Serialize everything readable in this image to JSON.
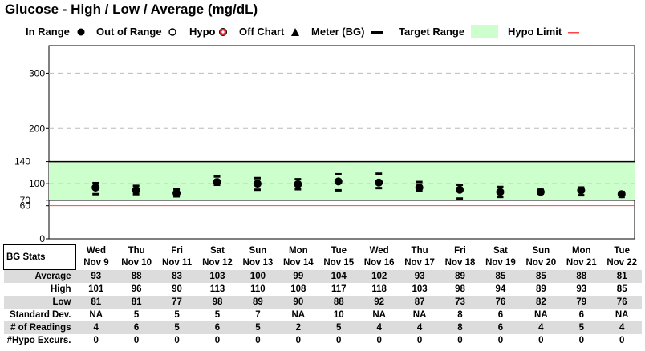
{
  "title": "Glucose - High / Low / Average  (mg/dL)",
  "legend": {
    "in_range": "In Range",
    "out_of_range": "Out of Range",
    "hypo": "Hypo",
    "off_chart": "Off Chart",
    "meter": "Meter (BG)",
    "target_range": "Target Range",
    "hypo_limit": "Hypo Limit"
  },
  "colors": {
    "target_fill": "#ccffcc",
    "hypo_limit": "#ff4444",
    "grid": "#bbbbbb",
    "shade_row": "#dcdcdc"
  },
  "chart_data": {
    "type": "scatter",
    "y_ticks": [
      "300",
      "200",
      "140",
      "100",
      "70",
      "60",
      "0"
    ],
    "y_tick_values": [
      300,
      200,
      140,
      100,
      70,
      60,
      0
    ],
    "ylim": [
      0,
      350
    ],
    "target_range": [
      70,
      140
    ],
    "hypo_limit": 60,
    "x": [
      "Nov 9",
      "Nov 10",
      "Nov 11",
      "Nov 12",
      "Nov 13",
      "Nov 14",
      "Nov 15",
      "Nov 16",
      "Nov 17",
      "Nov 18",
      "Nov 19",
      "Nov 20",
      "Nov 21",
      "Nov 22"
    ],
    "series": [
      {
        "name": "Average",
        "values": [
          93,
          88,
          83,
          103,
          100,
          99,
          104,
          102,
          93,
          89,
          85,
          85,
          88,
          81
        ]
      },
      {
        "name": "High",
        "values": [
          101,
          96,
          90,
          113,
          110,
          108,
          117,
          118,
          103,
          98,
          94,
          89,
          93,
          85
        ]
      },
      {
        "name": "Low",
        "values": [
          81,
          81,
          77,
          98,
          89,
          90,
          88,
          92,
          87,
          73,
          76,
          82,
          79,
          76
        ]
      }
    ]
  },
  "table": {
    "corner": "BG Stats",
    "days": [
      {
        "day": "Wed",
        "date": "Nov 9"
      },
      {
        "day": "Thu",
        "date": "Nov 10"
      },
      {
        "day": "Fri",
        "date": "Nov 11"
      },
      {
        "day": "Sat",
        "date": "Nov 12"
      },
      {
        "day": "Sun",
        "date": "Nov 13"
      },
      {
        "day": "Mon",
        "date": "Nov 14"
      },
      {
        "day": "Tue",
        "date": "Nov 15"
      },
      {
        "day": "Wed",
        "date": "Nov 16"
      },
      {
        "day": "Thu",
        "date": "Nov 17"
      },
      {
        "day": "Fri",
        "date": "Nov 18"
      },
      {
        "day": "Sat",
        "date": "Nov 19"
      },
      {
        "day": "Sun",
        "date": "Nov 20"
      },
      {
        "day": "Mon",
        "date": "Nov 21"
      },
      {
        "day": "Tue",
        "date": "Nov 22"
      }
    ],
    "rows": [
      {
        "label": "Average",
        "values": [
          "93",
          "88",
          "83",
          "103",
          "100",
          "99",
          "104",
          "102",
          "93",
          "89",
          "85",
          "85",
          "88",
          "81"
        ]
      },
      {
        "label": "High",
        "values": [
          "101",
          "96",
          "90",
          "113",
          "110",
          "108",
          "117",
          "118",
          "103",
          "98",
          "94",
          "89",
          "93",
          "85"
        ]
      },
      {
        "label": "Low",
        "values": [
          "81",
          "81",
          "77",
          "98",
          "89",
          "90",
          "88",
          "92",
          "87",
          "73",
          "76",
          "82",
          "79",
          "76"
        ]
      },
      {
        "label": "Standard Dev.",
        "values": [
          "NA",
          "5",
          "5",
          "5",
          "7",
          "NA",
          "10",
          "NA",
          "NA",
          "8",
          "6",
          "NA",
          "6",
          "NA"
        ]
      },
      {
        "label": "# of Readings",
        "values": [
          "4",
          "6",
          "5",
          "6",
          "5",
          "2",
          "5",
          "4",
          "4",
          "8",
          "6",
          "4",
          "5",
          "4"
        ]
      },
      {
        "label": "#Hypo Excurs.",
        "values": [
          "0",
          "0",
          "0",
          "0",
          "0",
          "0",
          "0",
          "0",
          "0",
          "0",
          "0",
          "0",
          "0",
          "0"
        ]
      }
    ]
  }
}
